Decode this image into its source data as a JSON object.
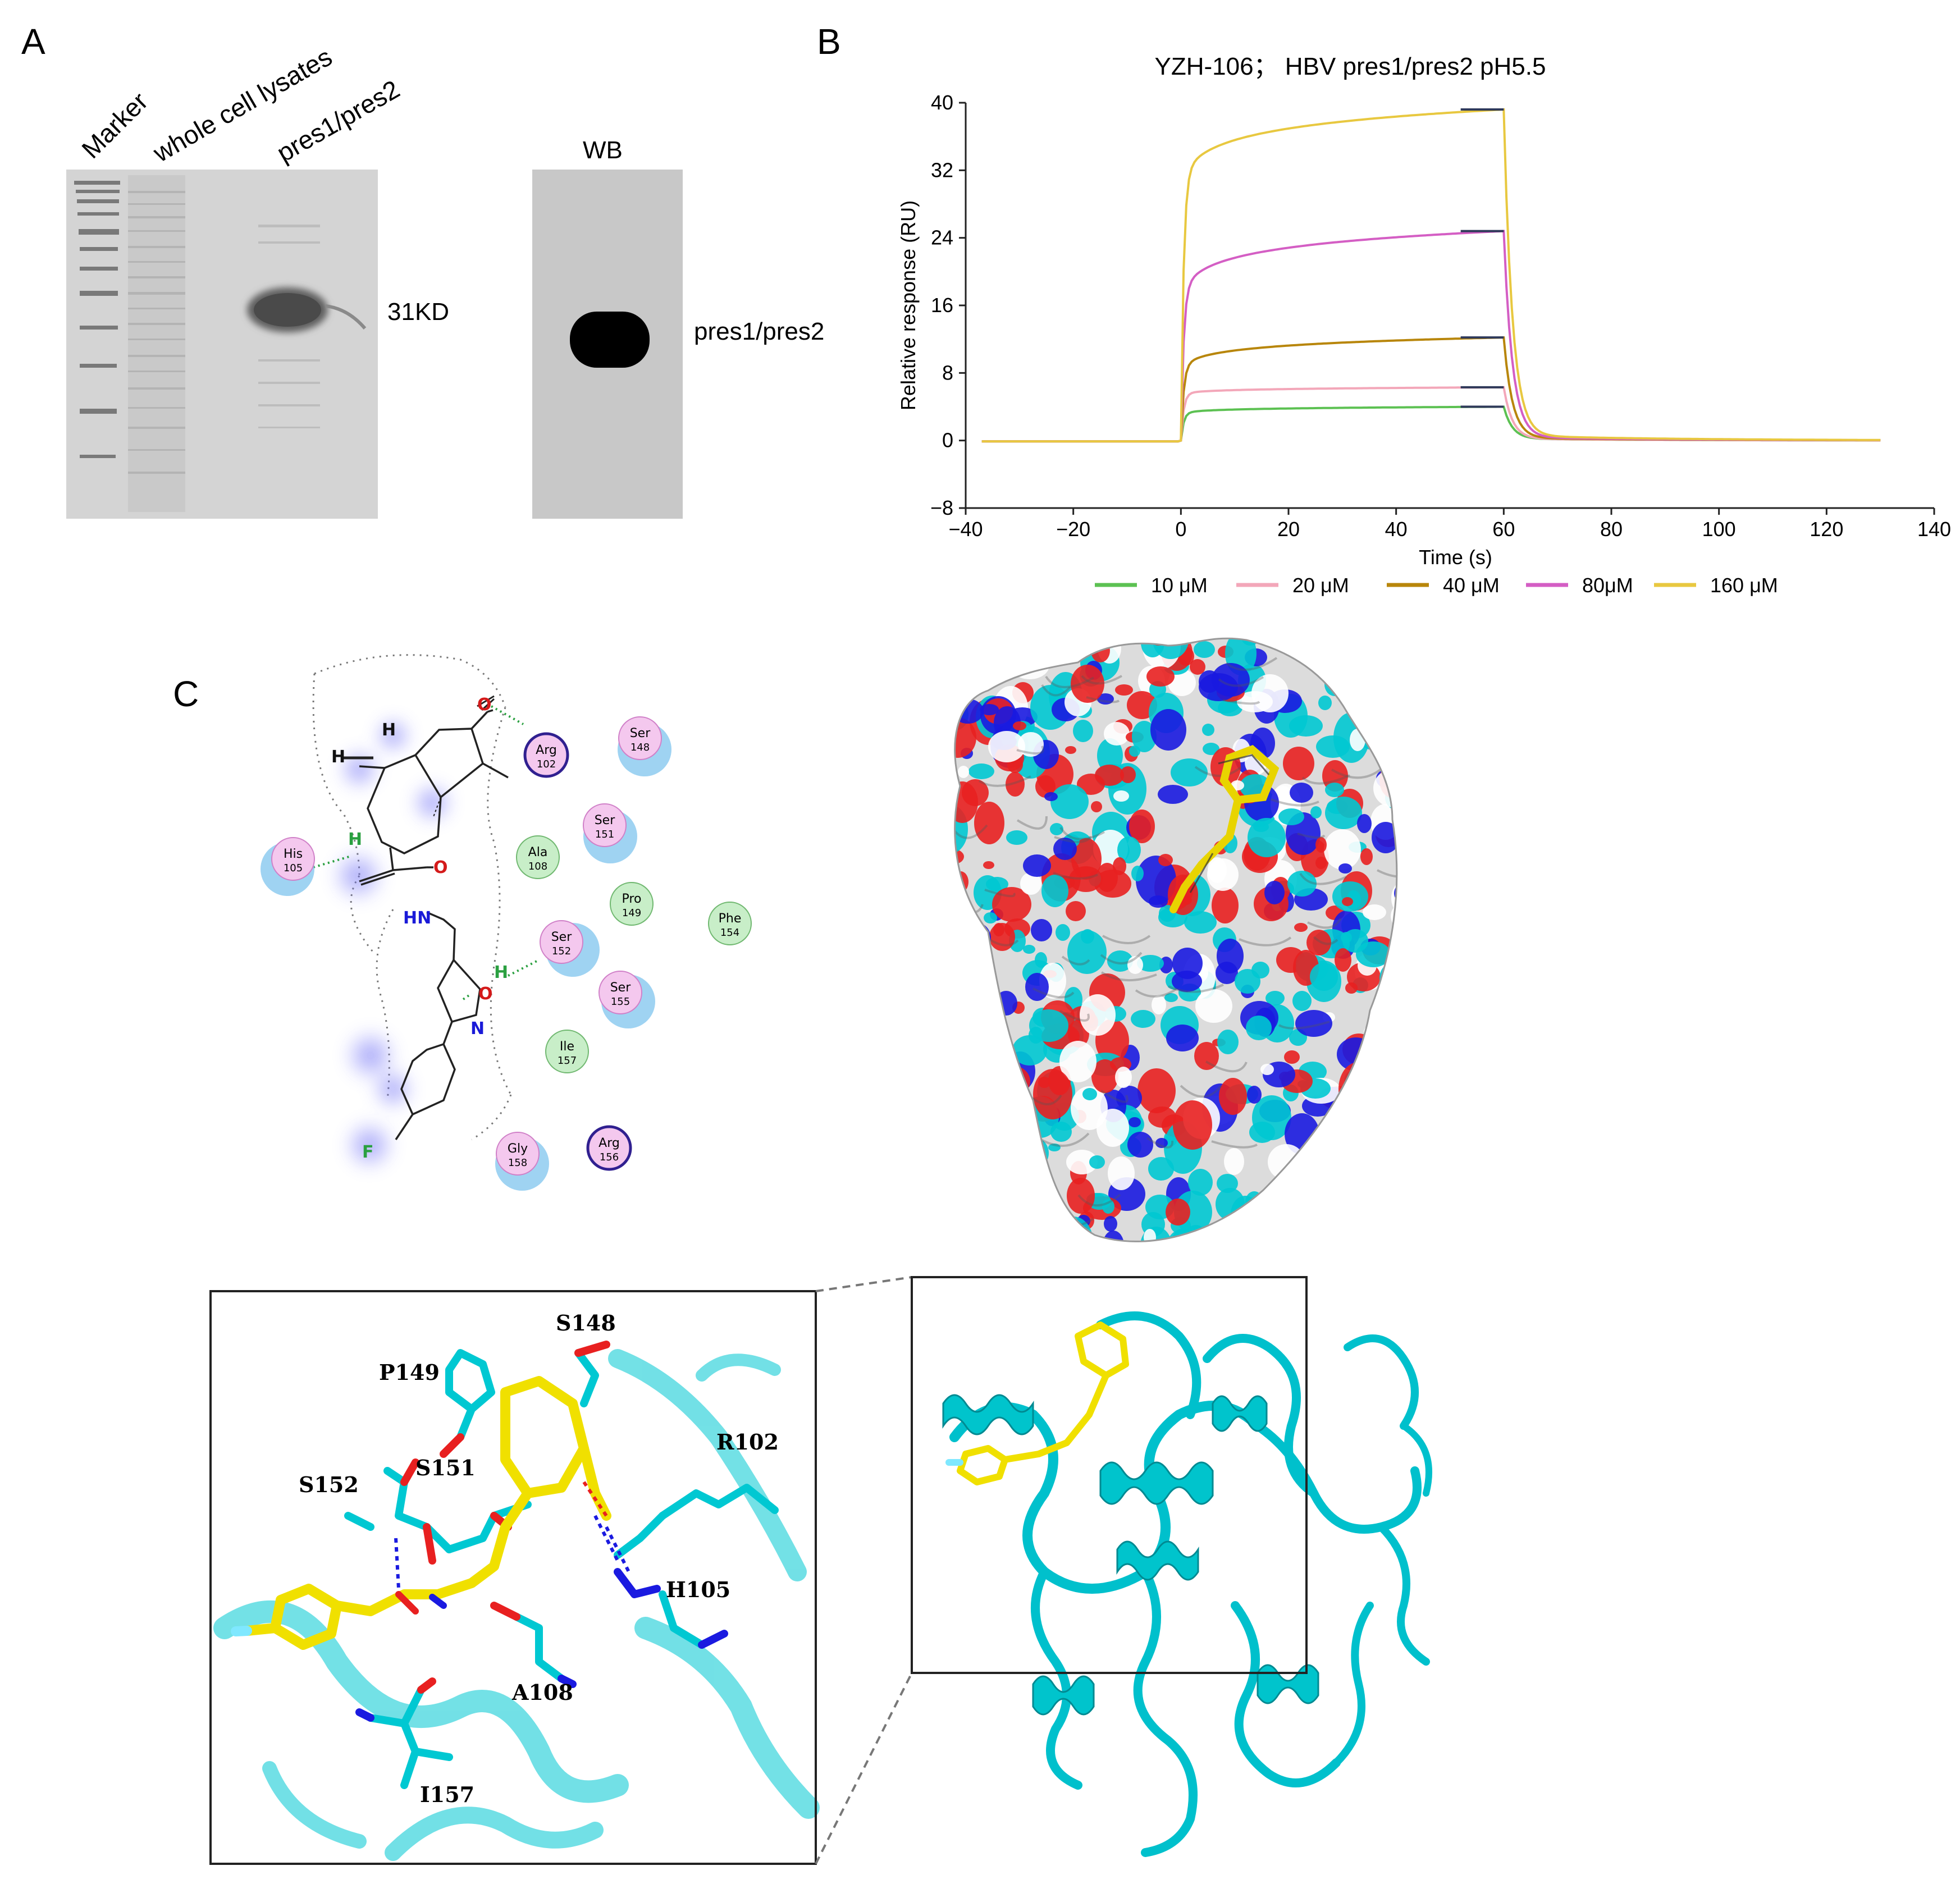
{
  "panels": {
    "a": "A",
    "b": "B",
    "c": "C"
  },
  "gel": {
    "lanes": [
      "Marker",
      "whole cell lysates",
      "pres1/pres2"
    ],
    "band_label": "31KD",
    "wb_title": "WB",
    "wb_label": "pres1/pres2"
  },
  "chart_data": {
    "type": "line",
    "title": "YZH-106； HBV pres1/pres2 pH5.5",
    "xlabel": "Time (s)",
    "ylabel": "Relative response (RU)",
    "xlim": [
      -40,
      140
    ],
    "ylim": [
      -8,
      40
    ],
    "xticks": [
      "−40",
      "−20",
      "0",
      "20",
      "40",
      "60",
      "80",
      "100",
      "120",
      "140"
    ],
    "yticks": [
      "−8",
      "0",
      "8",
      "16",
      "24",
      "32",
      "40"
    ],
    "grid": false,
    "legend_position": "bottom",
    "series": [
      {
        "name": "10 μM",
        "color": "#5cc152",
        "start": 3.2,
        "end": 4.0,
        "dissoc_tail": 0.2
      },
      {
        "name": "20 μM",
        "color": "#f3a7b9",
        "start": 5.5,
        "end": 6.3,
        "dissoc_tail": 0.2
      },
      {
        "name": "40 μM",
        "color": "#b8860b",
        "start": 8.5,
        "end": 12.2,
        "dissoc_tail": 0.3
      },
      {
        "name": "80μM",
        "color": "#d45ec4",
        "start": 17.2,
        "end": 24.8,
        "dissoc_tail": 0.4
      },
      {
        "name": "160 μM",
        "color": "#e8c840",
        "start": 30.5,
        "end": 39.2,
        "dissoc_tail": 0.6
      }
    ],
    "association_start_s": 0,
    "dissociation_start_s": 60,
    "x_start_s": -37,
    "x_end_s": 130
  },
  "interaction_2d": {
    "residues": [
      {
        "name": "Arg",
        "num": "102",
        "kind": "basic"
      },
      {
        "name": "Ser",
        "num": "148",
        "kind": "polar"
      },
      {
        "name": "Ser",
        "num": "151",
        "kind": "polar"
      },
      {
        "name": "His",
        "num": "105",
        "kind": "polar"
      },
      {
        "name": "Ala",
        "num": "108",
        "kind": "greasy"
      },
      {
        "name": "Pro",
        "num": "149",
        "kind": "greasy"
      },
      {
        "name": "Phe",
        "num": "154",
        "kind": "greasy"
      },
      {
        "name": "Ser",
        "num": "152",
        "kind": "polar"
      },
      {
        "name": "Ser",
        "num": "155",
        "kind": "polar"
      },
      {
        "name": "Ile",
        "num": "157",
        "kind": "greasy"
      },
      {
        "name": "Gly",
        "num": "158",
        "kind": "polar"
      },
      {
        "name": "Arg",
        "num": "156",
        "kind": "basic"
      }
    ],
    "atoms": {
      "o1": "O",
      "h1": "H",
      "h2": "H",
      "h3": "H",
      "hn": "HN",
      "o2": "O",
      "o3": "O",
      "n1": "N",
      "h4": "H",
      "f": "F"
    }
  },
  "pocket_3d": {
    "residues": [
      "S148",
      "P149",
      "R102",
      "S152",
      "S151",
      "H105",
      "A108",
      "I157"
    ]
  },
  "colors": {
    "cyan": "#00c8d2",
    "ligand": "#f0e000",
    "oxygen": "#e82020",
    "nitrogen": "#1a1ae0",
    "surface_grey": "#dcdcdc"
  }
}
